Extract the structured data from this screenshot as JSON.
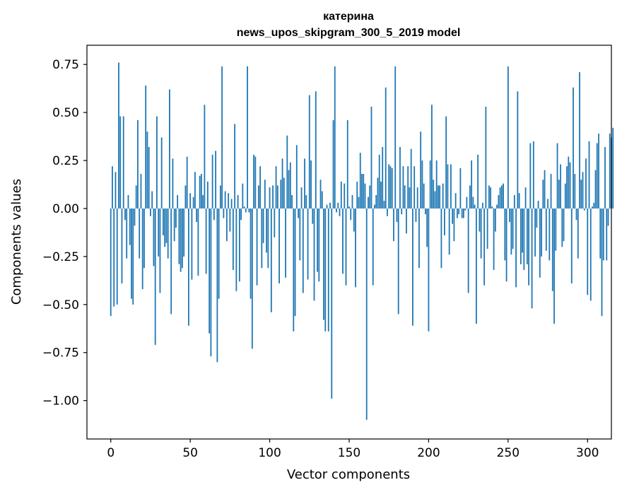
{
  "chart_data": {
    "type": "bar",
    "title_lines": [
      "катерина",
      "news_upos_skipgram_300_5_2019 model"
    ],
    "xlabel": "Vector components",
    "ylabel": "Components values",
    "xlim": [
      -15,
      315
    ],
    "ylim": [
      -1.2,
      0.85
    ],
    "xticks": [
      0,
      50,
      100,
      150,
      200,
      250,
      300
    ],
    "yticks": [
      -1.0,
      -0.75,
      -0.5,
      -0.25,
      0.0,
      0.25,
      0.5,
      0.75
    ],
    "ytick_labels": [
      "−1.00",
      "−0.75",
      "−0.50",
      "−0.25",
      "0.00",
      "0.25",
      "0.50",
      "0.75"
    ],
    "bar_color": "#1f77b4",
    "grid": false,
    "values": [
      -0.56,
      0.22,
      -0.51,
      0.19,
      -0.5,
      0.76,
      0.48,
      -0.39,
      0.48,
      -0.06,
      -0.26,
      0.07,
      -0.19,
      -0.47,
      -0.5,
      -0.09,
      0.12,
      0.46,
      -0.26,
      0.18,
      -0.42,
      -0.31,
      0.64,
      0.4,
      0.32,
      -0.04,
      0.09,
      -0.3,
      -0.71,
      0.48,
      -0.25,
      -0.44,
      0.37,
      -0.14,
      -0.2,
      -0.18,
      -0.26,
      0.62,
      -0.55,
      0.26,
      -0.17,
      -0.1,
      0.07,
      -0.29,
      -0.33,
      -0.31,
      -0.25,
      0.12,
      0.27,
      -0.61,
      0.08,
      -0.37,
      0.06,
      0.19,
      -0.07,
      -0.35,
      0.17,
      0.18,
      0.07,
      0.54,
      -0.34,
      0.14,
      -0.65,
      -0.77,
      0.28,
      -0.06,
      0.3,
      -0.8,
      -0.47,
      0.12,
      0.74,
      -0.05,
      0.09,
      -0.17,
      0.08,
      -0.12,
      0.05,
      -0.32,
      0.44,
      -0.43,
      0.07,
      -0.38,
      -0.06,
      0.13,
      0.01,
      -0.02,
      0.74,
      -0.02,
      -0.47,
      -0.73,
      0.28,
      0.27,
      -0.4,
      0.12,
      0.22,
      -0.31,
      -0.18,
      0.15,
      -0.23,
      -0.31,
      0.11,
      -0.54,
      0.12,
      -0.15,
      0.22,
      0.12,
      -0.39,
      0.15,
      0.26,
      0.16,
      -0.36,
      0.38,
      0.2,
      0.24,
      0.07,
      -0.64,
      -0.56,
      0.33,
      -0.05,
      -0.27,
      0.11,
      -0.44,
      0.26,
      0.07,
      -0.37,
      0.59,
      0.25,
      -0.08,
      -0.48,
      0.61,
      -0.33,
      -0.38,
      0.15,
      0.09,
      -0.58,
      -0.64,
      0.02,
      -0.64,
      0.03,
      -0.99,
      0.46,
      0.74,
      -0.02,
      0.03,
      -0.04,
      0.14,
      -0.34,
      0.13,
      -0.4,
      0.46,
      0.01,
      -0.06,
      0.07,
      -0.12,
      -0.41,
      0.14,
      0.06,
      0.29,
      0.18,
      0.18,
      0.13,
      -1.1,
      0.06,
      0.12,
      0.53,
      -0.4,
      0.02,
      0.07,
      0.16,
      0.28,
      0.14,
      0.32,
      0.04,
      0.63,
      -0.04,
      0.23,
      0.22,
      0.21,
      -0.17,
      0.74,
      -0.07,
      -0.55,
      0.32,
      -0.03,
      0.22,
      0.12,
      -0.13,
      0.22,
      0.11,
      0.31,
      -0.61,
      0.22,
      -0.07,
      0.11,
      -0.31,
      0.4,
      0.25,
      0.13,
      -0.03,
      -0.2,
      -0.64,
      0.25,
      0.54,
      0.15,
      0.09,
      0.25,
      0.12,
      0.12,
      -0.31,
      0.13,
      -0.14,
      0.48,
      0.23,
      -0.24,
      0.23,
      -0.08,
      -0.17,
      0.08,
      -0.05,
      -0.03,
      0.21,
      -0.05,
      -0.05,
      -0.01,
      0.06,
      -0.44,
      0.12,
      0.25,
      0.06,
      0.02,
      -0.6,
      0.28,
      -0.12,
      -0.26,
      0.03,
      -0.4,
      0.53,
      -0.21,
      0.12,
      0.11,
      0.01,
      -0.32,
      -0.12,
      0.02,
      0.07,
      0.11,
      0.12,
      0.13,
      -0.27,
      -0.38,
      0.74,
      -0.07,
      -0.24,
      -0.21,
      0.07,
      -0.41,
      0.61,
      0.08,
      -0.29,
      -0.23,
      -0.32,
      0.11,
      -0.29,
      -0.4,
      0.34,
      -0.52,
      0.35,
      -0.25,
      -0.1,
      0.04,
      -0.36,
      -0.25,
      0.15,
      0.2,
      -0.22,
      0.05,
      -0.27,
      0.18,
      -0.43,
      -0.6,
      -0.22,
      0.34,
      0.15,
      0.23,
      -0.2,
      -0.17,
      0.13,
      0.22,
      0.27,
      0.24,
      -0.39,
      0.63,
      0.18,
      -0.06,
      -0.26,
      0.71,
      0.15,
      0.19,
      -0.01,
      0.26,
      -0.45,
      0.35,
      -0.48,
      0.01,
      0.03,
      0.2,
      0.34,
      0.39,
      -0.26,
      -0.56,
      -0.27,
      0.32,
      -0.27,
      -0.09,
      0.39,
      0.37,
      0.42
    ]
  }
}
